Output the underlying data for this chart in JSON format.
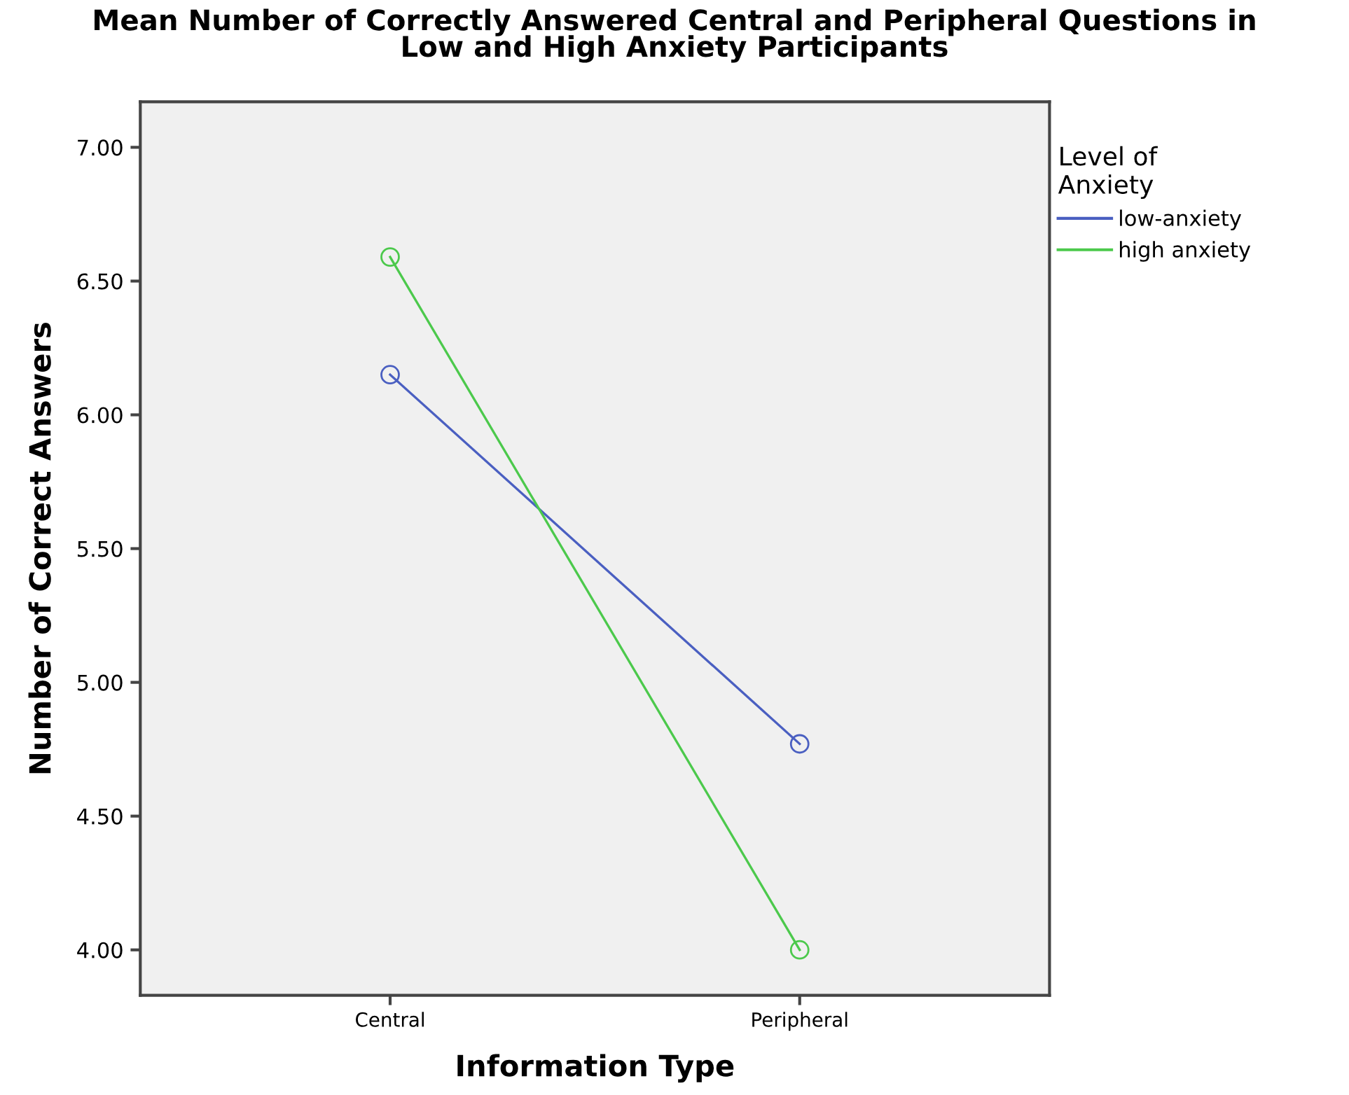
{
  "chart_data": {
    "type": "line",
    "title": "Mean Number of Correctly Answered Central and Peripheral Questions in\nLow and High Anxiety Participants",
    "xlabel": "Information Type",
    "ylabel": "Number of Correct Answers",
    "legend_title": "Level of\nAnxiety",
    "categories": [
      "Central",
      "Peripheral"
    ],
    "series": [
      {
        "name": "low-anxiety",
        "color": "#4a5fc1",
        "values": [
          6.15,
          4.77
        ]
      },
      {
        "name": "high anxiety",
        "color": "#4cc94c",
        "values": [
          6.59,
          4.0
        ]
      }
    ],
    "ylim": [
      3.83,
      7.17
    ],
    "yticks": [
      {
        "value": 4,
        "label": "4.00"
      },
      {
        "value": 4.5,
        "label": "4.50"
      },
      {
        "value": 5,
        "label": "5.00"
      },
      {
        "value": 5.5,
        "label": "5.50"
      },
      {
        "value": 6,
        "label": "6.00"
      },
      {
        "value": 6.5,
        "label": "6.50"
      },
      {
        "value": 7,
        "label": "7.00"
      }
    ],
    "marker": "circle",
    "line_style": "solid",
    "legend": "top right",
    "grid": false
  }
}
